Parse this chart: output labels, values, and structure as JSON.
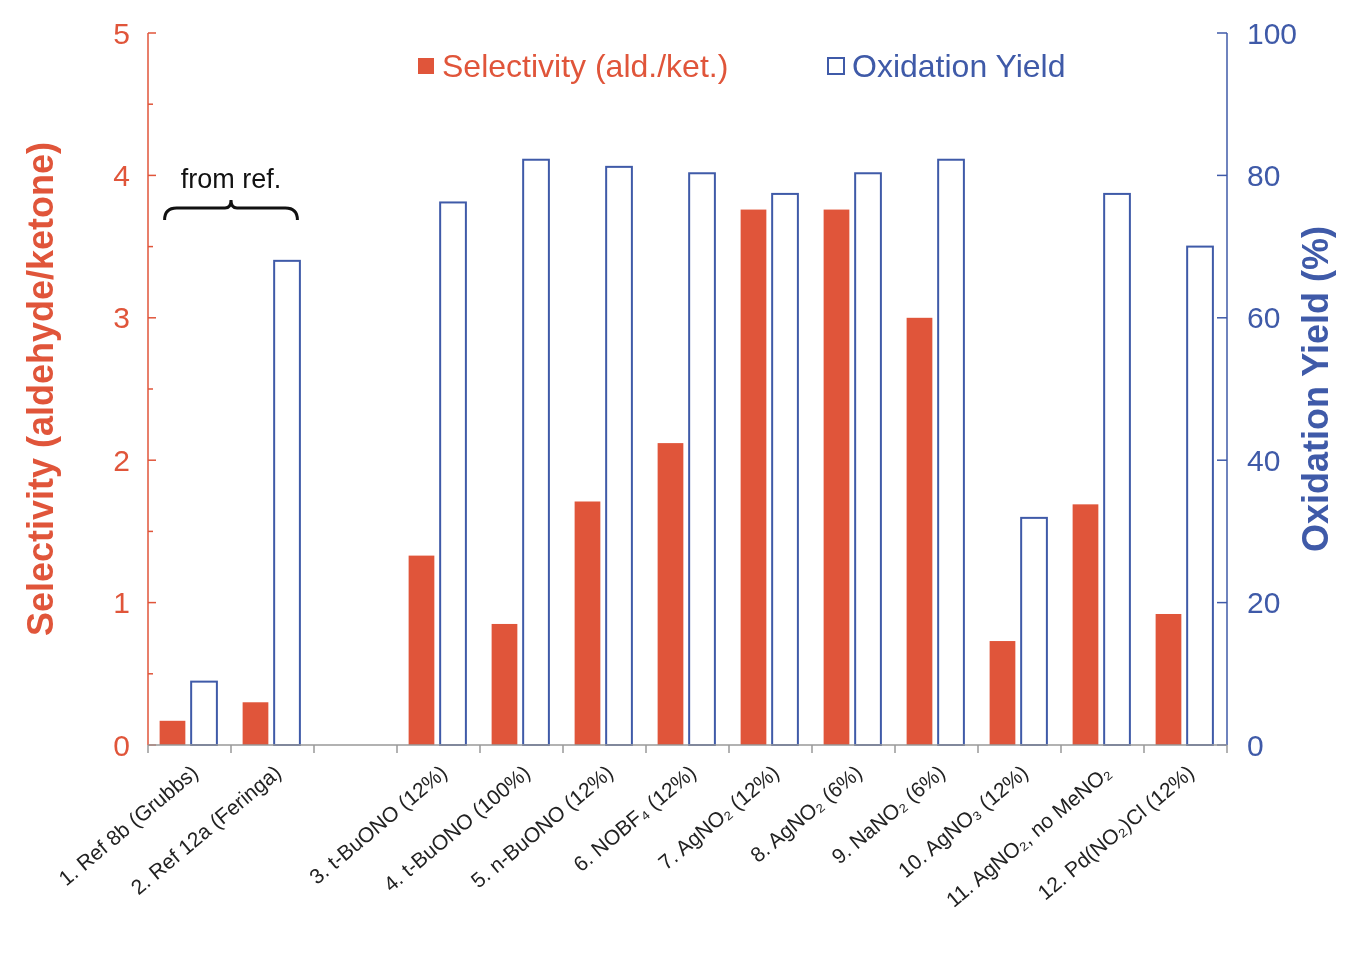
{
  "chart_data": {
    "type": "bar",
    "categories": [
      "1. Ref 8b (Grubbs)",
      "2. Ref 12a (Feringa)",
      null,
      "3. t-BuONO (12%)",
      "4. t-BuONO (100%)",
      "5. n-BuONO (12%)",
      "6. NOBF₄ (12%)",
      "7. AgNO₂ (12%)",
      "8. AgNO₂ (6%)",
      "9. NaNO₂ (6%)",
      "10. AgNO₃ (12%)",
      "11. AgNO₂, no MeNO₂",
      "12. Pd(NO₂)Cl (12%)"
    ],
    "series": [
      {
        "name": "Selectivity (ald./ket.)",
        "color": "#e0553a",
        "values": [
          0.17,
          0.3,
          null,
          1.33,
          0.85,
          1.71,
          2.12,
          3.76,
          3.76,
          3.0,
          0.73,
          1.69,
          0.92
        ]
      },
      {
        "name": "Oxidation Yield",
        "color": "#3f5aa8",
        "axis": "y2",
        "values": [
          8.9,
          68,
          null,
          76.2,
          82.2,
          81.2,
          80.3,
          77.4,
          80.3,
          82.2,
          31.9,
          77.4,
          70
        ]
      }
    ],
    "ylabel": "Selectivity (aldehyde/ketone)",
    "y2label": "Oxidation Yield (%)",
    "ylim": [
      0,
      5
    ],
    "yticks": [
      0,
      {
        "value": 0.5,
        "label": null
      },
      1,
      {
        "value": 1.5,
        "label": null
      },
      2,
      {
        "value": 2.5,
        "label": null
      },
      3,
      {
        "value": 3.5,
        "label": null
      },
      4,
      {
        "value": 4.5,
        "label": null
      },
      5
    ],
    "y2lim": [
      0,
      100
    ],
    "y2ticks": [
      0,
      20,
      40,
      60,
      80,
      100
    ],
    "annotations": [
      "from ref."
    ],
    "legend": "top",
    "grid": false
  }
}
